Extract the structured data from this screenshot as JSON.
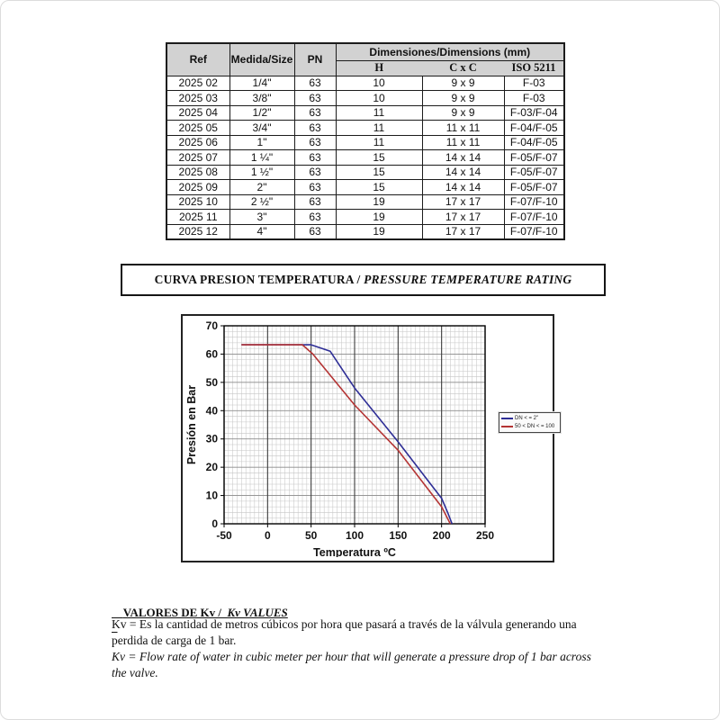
{
  "document": {
    "banner": {
      "title_es": "CURVA PRESION TEMPERATURA / ",
      "title_en": "PRESSURE TEMPERATURE RATING"
    },
    "kv": {
      "heading_es": "VALORES DE Kv /  ",
      "heading_en": "Kv VALUES",
      "es_line1": "Kv = Es la cantidad de metros cúbicos por hora que pasará a través de la válvula generando una",
      "es_line2": "perdida de carga de 1 bar.",
      "en_line1": "Kv =  Flow rate of water in cubic meter per hour that will generate a pressure drop of 1 bar across",
      "en_line2": "the valve."
    }
  },
  "table": {
    "headers": {
      "ref": "Ref",
      "size": "Medida/Size",
      "pn": "PN",
      "dims": "Dimensiones/Dimensions (mm)",
      "h": "H",
      "cxc": "C x C",
      "iso": "ISO 5211"
    },
    "rows": [
      [
        "2025 02",
        "1/4\"",
        "63",
        "10",
        "9 x 9",
        "F-03"
      ],
      [
        "2025 03",
        "3/8\"",
        "63",
        "10",
        "9 x 9",
        "F-03"
      ],
      [
        "2025 04",
        "1/2\"",
        "63",
        "11",
        "9 x 9",
        "F-03/F-04"
      ],
      [
        "2025 05",
        "3/4\"",
        "63",
        "11",
        "11 x 11",
        "F-04/F-05"
      ],
      [
        "2025 06",
        "1\"",
        "63",
        "11",
        "11 x 11",
        "F-04/F-05"
      ],
      [
        "2025 07",
        "1 ¼\"",
        "63",
        "15",
        "14 x 14",
        "F-05/F-07"
      ],
      [
        "2025 08",
        "1 ½\"",
        "63",
        "15",
        "14 x 14",
        "F-05/F-07"
      ],
      [
        "2025 09",
        "2\"",
        "63",
        "15",
        "14 x 14",
        "F-05/F-07"
      ],
      [
        "2025 10",
        "2 ½\"",
        "63",
        "19",
        "17 x 17",
        "F-07/F-10"
      ],
      [
        "2025 11",
        "3\"",
        "63",
        "19",
        "17 x 17",
        "F-07/F-10"
      ],
      [
        "2025 12",
        "4\"",
        "63",
        "19",
        "17 x 17",
        "F-07/F-10"
      ]
    ]
  },
  "chart_data": {
    "type": "line",
    "title": "",
    "xlabel": "Temperatura ºC",
    "ylabel": "Presión en Bar",
    "xlim": [
      -50,
      250
    ],
    "ylim": [
      0,
      70
    ],
    "x_ticks": [
      -50,
      0,
      50,
      100,
      150,
      200,
      250
    ],
    "y_ticks": [
      0,
      10,
      20,
      30,
      40,
      50,
      60,
      70
    ],
    "x_minor_step": 5,
    "y_minor_step": 2,
    "grid": true,
    "legend_position": "right-inside",
    "series": [
      {
        "name": "DN < = 2\"",
        "color": "#2e2e96",
        "points": [
          [
            -30,
            63.3
          ],
          [
            50,
            63.3
          ],
          [
            72,
            61
          ],
          [
            100,
            48
          ],
          [
            150,
            29
          ],
          [
            200,
            9
          ],
          [
            207,
            4
          ],
          [
            212,
            0
          ]
        ]
      },
      {
        "name": "50 < DN < = 100",
        "color": "#b43434",
        "points": [
          [
            -30,
            63.3
          ],
          [
            40,
            63.3
          ],
          [
            52,
            60
          ],
          [
            100,
            42
          ],
          [
            150,
            26
          ],
          [
            200,
            6
          ],
          [
            210,
            0
          ]
        ]
      }
    ]
  }
}
